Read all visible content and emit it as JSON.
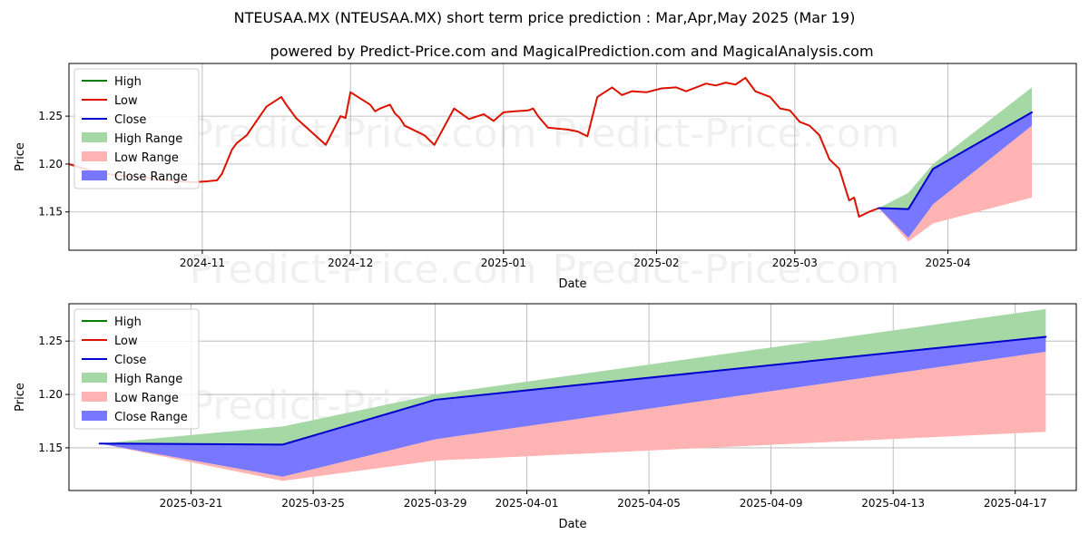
{
  "title": "NTEUSAA.MX (NTEUSAA.MX) short term price prediction : Mar,Apr,May 2025 (Mar 19)",
  "subtitle": "powered by Predict-Price.com and MagicalPrediction.com and MagicalAnalysis.com",
  "watermark": "Predict-Price.com",
  "colors": {
    "high": "#008000",
    "low": "#dd1100",
    "close": "#0000cc",
    "high_range": "#a6d8a6",
    "low_range": "#ffb3b3",
    "close_range": "#7777ff",
    "grid": "#b0b0b0"
  },
  "legend": {
    "items": [
      {
        "label": "High",
        "kind": "line",
        "color_key": "high"
      },
      {
        "label": "Low",
        "kind": "line",
        "color_key": "low"
      },
      {
        "label": "Close",
        "kind": "line",
        "color_key": "close"
      },
      {
        "label": "High Range",
        "kind": "patch",
        "color_key": "high_range"
      },
      {
        "label": "Low Range",
        "kind": "patch",
        "color_key": "low_range"
      },
      {
        "label": "Close Range",
        "kind": "patch",
        "color_key": "close_range"
      }
    ]
  },
  "chart_data": [
    {
      "type": "line",
      "xlabel": "Date",
      "ylabel": "Price",
      "xlim": [
        "2024-10-05",
        "2025-04-27"
      ],
      "ylim": [
        1.11,
        1.305
      ],
      "xticks": [
        "2024-11-01",
        "2024-12-01",
        "2025-01-01",
        "2025-02-01",
        "2025-03-01",
        "2025-04-01"
      ],
      "xtick_labels": [
        "2024-11",
        "2024-12",
        "2025-01",
        "2025-02",
        "2025-03",
        "2025-04"
      ],
      "yticks": [
        1.15,
        1.2,
        1.25
      ],
      "ytick_labels": [
        "1.15",
        "1.20",
        "1.25"
      ],
      "grid": true,
      "legend": "upper-left",
      "history": {
        "name": "Low",
        "dates": [
          "2024-10-05",
          "2024-10-10",
          "2024-10-15",
          "2024-10-20",
          "2024-10-25",
          "2024-10-30",
          "2024-11-02",
          "2024-11-04",
          "2024-11-05",
          "2024-11-07",
          "2024-11-08",
          "2024-11-10",
          "2024-11-14",
          "2024-11-17",
          "2024-11-18",
          "2024-11-20",
          "2024-11-26",
          "2024-11-29",
          "2024-11-30",
          "2024-12-01",
          "2024-12-05",
          "2024-12-06",
          "2024-12-07",
          "2024-12-09",
          "2024-12-10",
          "2024-12-11",
          "2024-12-12",
          "2024-12-14",
          "2024-12-16",
          "2024-12-18",
          "2024-12-22",
          "2024-12-25",
          "2024-12-28",
          "2024-12-30",
          "2025-01-01",
          "2025-01-03",
          "2025-01-06",
          "2025-01-07",
          "2025-01-08",
          "2025-01-10",
          "2025-01-12",
          "2025-01-14",
          "2025-01-16",
          "2025-01-18",
          "2025-01-20",
          "2025-01-23",
          "2025-01-25",
          "2025-01-27",
          "2025-01-30",
          "2025-02-02",
          "2025-02-05",
          "2025-02-07",
          "2025-02-09",
          "2025-02-11",
          "2025-02-13",
          "2025-02-15",
          "2025-02-17",
          "2025-02-19",
          "2025-02-21",
          "2025-02-24",
          "2025-02-26",
          "2025-02-28",
          "2025-03-02",
          "2025-03-04",
          "2025-03-06",
          "2025-03-08",
          "2025-03-10",
          "2025-03-12",
          "2025-03-13",
          "2025-03-14",
          "2025-03-16",
          "2025-03-18"
        ],
        "values": [
          1.2,
          1.192,
          1.188,
          1.186,
          1.183,
          1.181,
          1.182,
          1.183,
          1.19,
          1.215,
          1.222,
          1.23,
          1.26,
          1.27,
          1.262,
          1.248,
          1.22,
          1.25,
          1.248,
          1.275,
          1.262,
          1.255,
          1.258,
          1.262,
          1.253,
          1.248,
          1.24,
          1.235,
          1.23,
          1.22,
          1.258,
          1.247,
          1.252,
          1.245,
          1.254,
          1.255,
          1.256,
          1.258,
          1.25,
          1.238,
          1.237,
          1.236,
          1.234,
          1.229,
          1.27,
          1.28,
          1.272,
          1.276,
          1.275,
          1.279,
          1.28,
          1.276,
          1.28,
          1.284,
          1.282,
          1.285,
          1.283,
          1.29,
          1.276,
          1.27,
          1.258,
          1.256,
          1.244,
          1.24,
          1.23,
          1.205,
          1.195,
          1.162,
          1.165,
          1.145,
          1.15,
          1.154
        ]
      },
      "forecast": {
        "dates": [
          "2025-03-18",
          "2025-03-24",
          "2025-03-29",
          "2025-04-18"
        ],
        "high_range_upper": [
          1.154,
          1.17,
          1.2,
          1.28
        ],
        "high_range_lower": [
          1.154,
          1.153,
          1.195,
          1.254
        ],
        "close_range_upper": [
          1.154,
          1.153,
          1.195,
          1.254
        ],
        "close_range_lower": [
          1.154,
          1.123,
          1.158,
          1.24
        ],
        "low_range_upper": [
          1.154,
          1.123,
          1.158,
          1.24
        ],
        "low_range_lower": [
          1.154,
          1.119,
          1.138,
          1.165
        ],
        "close": [
          1.154,
          1.153,
          1.195,
          1.254
        ]
      }
    },
    {
      "type": "line",
      "xlabel": "Date",
      "ylabel": "Price",
      "xlim": [
        "2025-03-17",
        "2025-04-19"
      ],
      "ylim": [
        1.11,
        1.285
      ],
      "xticks": [
        "2025-03-21",
        "2025-03-25",
        "2025-03-29",
        "2025-04-01",
        "2025-04-05",
        "2025-04-09",
        "2025-04-13",
        "2025-04-17"
      ],
      "xtick_labels": [
        "2025-03-21",
        "2025-03-25",
        "2025-03-29",
        "2025-04-01",
        "2025-04-05",
        "2025-04-09",
        "2025-04-13",
        "2025-04-17"
      ],
      "yticks": [
        1.15,
        1.2,
        1.25
      ],
      "ytick_labels": [
        "1.15",
        "1.20",
        "1.25"
      ],
      "grid": true,
      "legend": "upper-left",
      "forecast": {
        "dates": [
          "2025-03-18",
          "2025-03-24",
          "2025-03-29",
          "2025-04-18"
        ],
        "high_range_upper": [
          1.154,
          1.17,
          1.2,
          1.28
        ],
        "high_range_lower": [
          1.154,
          1.153,
          1.195,
          1.254
        ],
        "close_range_upper": [
          1.154,
          1.153,
          1.195,
          1.254
        ],
        "close_range_lower": [
          1.154,
          1.123,
          1.158,
          1.24
        ],
        "low_range_upper": [
          1.154,
          1.123,
          1.158,
          1.24
        ],
        "low_range_lower": [
          1.154,
          1.119,
          1.138,
          1.165
        ],
        "close": [
          1.154,
          1.153,
          1.195,
          1.254
        ]
      }
    }
  ]
}
